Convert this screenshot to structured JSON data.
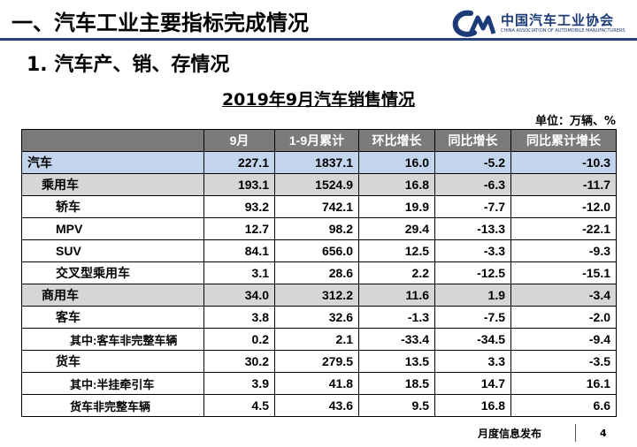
{
  "header": {
    "title": "一、汽车工业主要指标完成情况"
  },
  "logo": {
    "cn": "中国汽车工业协会",
    "en": "CHINA ASSOCIATION OF AUTOMOBILE MANUFACTURERS"
  },
  "section": {
    "title": "1. 汽车产、销、存情况"
  },
  "table": {
    "title": "2019年9月汽车销售情况",
    "unit": "单位：万辆、%",
    "headers": [
      "",
      "9月",
      "1-9月累计",
      "环比增长",
      "同比增长",
      "同比累计增长"
    ],
    "rows": [
      {
        "name": "汽车",
        "level": 0,
        "highlight": "blue",
        "values": [
          "227.1",
          "1837.1",
          "16.0",
          "-5.2",
          "-10.3"
        ]
      },
      {
        "name": "乘用车",
        "level": 1,
        "highlight": "gray",
        "values": [
          "193.1",
          "1524.9",
          "16.8",
          "-6.3",
          "-11.7"
        ]
      },
      {
        "name": "轿车",
        "level": 2,
        "highlight": "",
        "values": [
          "93.2",
          "742.1",
          "19.9",
          "-7.7",
          "-12.0"
        ]
      },
      {
        "name": "MPV",
        "level": 2,
        "highlight": "",
        "values": [
          "12.7",
          "98.2",
          "29.4",
          "-13.3",
          "-22.1"
        ]
      },
      {
        "name": "SUV",
        "level": 2,
        "highlight": "",
        "values": [
          "84.1",
          "656.0",
          "12.5",
          "-3.3",
          "-9.3"
        ]
      },
      {
        "name": "交叉型乘用车",
        "level": 2,
        "highlight": "",
        "values": [
          "3.1",
          "28.6",
          "2.2",
          "-12.5",
          "-15.1"
        ]
      },
      {
        "name": "商用车",
        "level": 1,
        "highlight": "gray",
        "values": [
          "34.0",
          "312.2",
          "11.6",
          "1.9",
          "-3.4"
        ]
      },
      {
        "name": "客车",
        "level": 2,
        "highlight": "",
        "values": [
          "3.8",
          "32.6",
          "-1.3",
          "-7.5",
          "-2.0"
        ]
      },
      {
        "name": "其中:客车非完整车辆",
        "level": 3,
        "highlight": "",
        "values": [
          "0.2",
          "2.1",
          "-33.4",
          "-34.5",
          "-9.4"
        ]
      },
      {
        "name": "货车",
        "level": 2,
        "highlight": "",
        "values": [
          "30.2",
          "279.5",
          "13.5",
          "3.3",
          "-3.5"
        ]
      },
      {
        "name": "其中:半挂牵引车",
        "level": 3,
        "highlight": "",
        "values": [
          "3.9",
          "41.8",
          "18.5",
          "14.7",
          "16.1"
        ]
      },
      {
        "name": "货车非完整车辆",
        "level": 3,
        "highlight": "",
        "values": [
          "4.5",
          "43.6",
          "9.5",
          "16.8",
          "6.6"
        ]
      }
    ]
  },
  "footer": {
    "text": "月度信息发布",
    "page": "4"
  },
  "colors": {
    "rule": "#2b3f7e",
    "header_bg": "#7b7b7b",
    "row_blue": "#c3d5ec",
    "row_gray": "#d6d6d6"
  }
}
